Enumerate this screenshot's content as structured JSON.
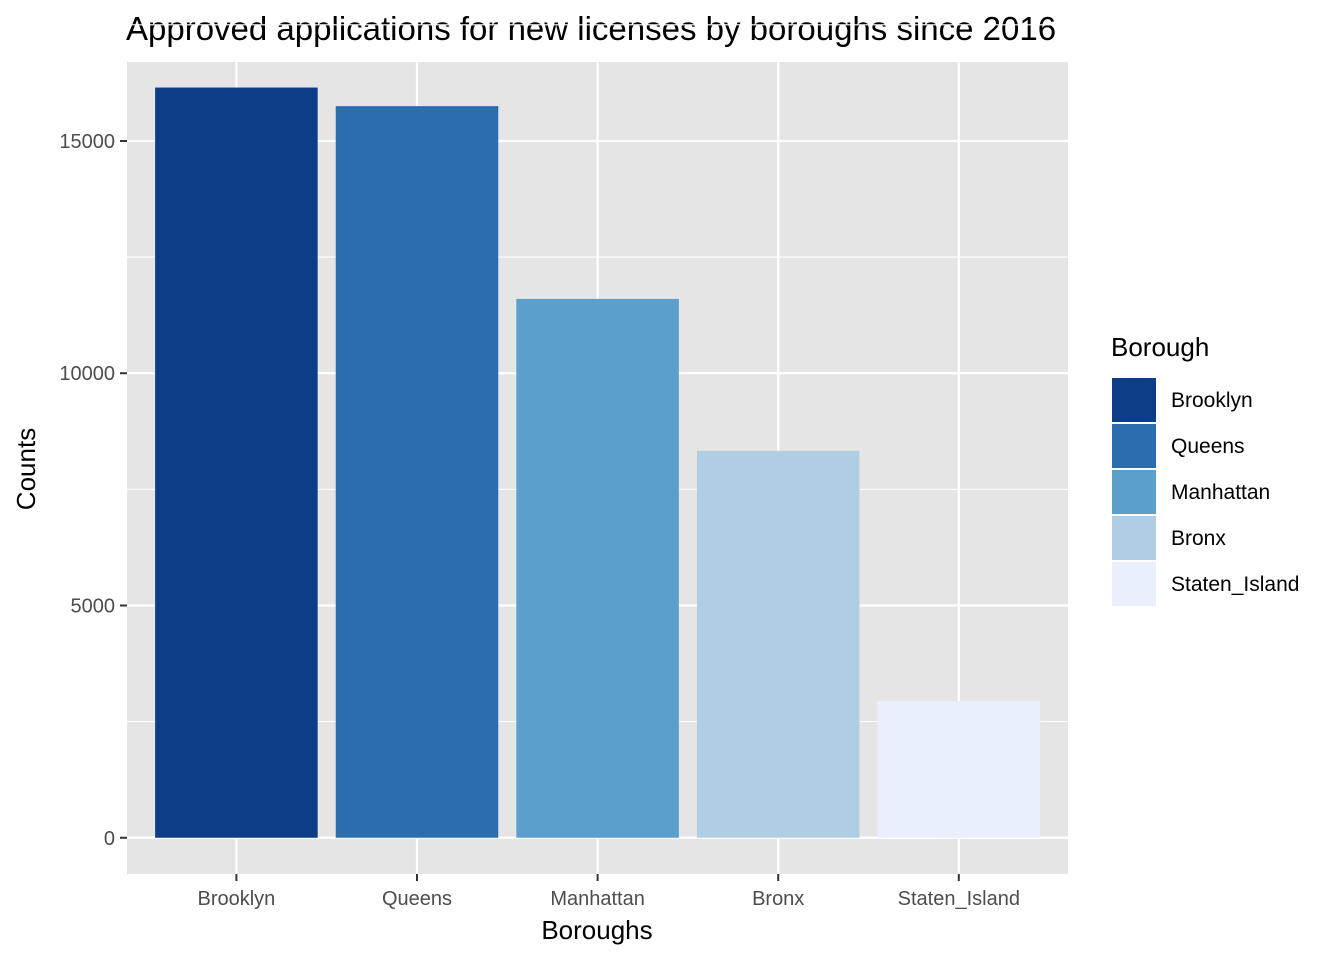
{
  "chart_data": {
    "type": "bar",
    "title": "Approved applications for new licenses by boroughs since 2016",
    "xlabel": "Boroughs",
    "ylabel": "Counts",
    "categories": [
      "Brooklyn",
      "Queens",
      "Manhattan",
      "Bronx",
      "Staten_Island"
    ],
    "values": [
      16150,
      15750,
      11600,
      8330,
      2940
    ],
    "ylim": [
      -780,
      16700
    ],
    "yticks": [
      0,
      5000,
      10000,
      15000
    ],
    "ytick_labels": [
      "0",
      "5000",
      "10000",
      "15000"
    ],
    "grid": true,
    "legend": {
      "title": "Borough",
      "placement": "right",
      "entries": [
        "Brooklyn",
        "Queens",
        "Manhattan",
        "Bronx",
        "Staten_Island"
      ]
    },
    "colors": [
      "#0e3d87",
      "#2a6eb0",
      "#5ba0cc",
      "#b0cee3",
      "#e9effc"
    ],
    "panel_background": "#e5e5e5",
    "grid_color": "#ffffff"
  }
}
